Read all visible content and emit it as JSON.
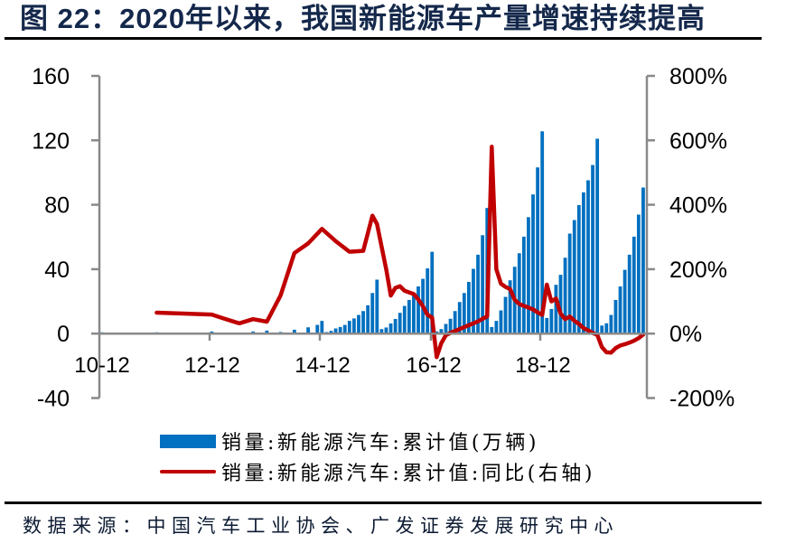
{
  "header": {
    "title": "图 22：2020年以来，我国新能源车产量增速持续提高"
  },
  "legend": {
    "items": [
      {
        "label": "销量:新能源汽车:累计值(万辆)",
        "marker": "bar",
        "color": "#0070c0"
      },
      {
        "label": "销量:新能源汽车:累计值:同比(右轴)",
        "marker": "line",
        "color": "#c00000"
      }
    ]
  },
  "footer": {
    "source": "数据来源：中国汽车工业协会、广发证券发展研究中心"
  },
  "chart_data": {
    "type": "bar+line",
    "title": "图 22：2020年以来，我国新能源车产量增速持续提高",
    "xlabel": "",
    "ylabel_left": "",
    "ylabel_right": "",
    "ylim_left": [
      -40,
      160
    ],
    "yticks_left": [
      "160",
      "120",
      "80",
      "40",
      "0",
      "-40"
    ],
    "ylim_right": [
      -200,
      800
    ],
    "yticks_right": [
      "800%",
      "600%",
      "400%",
      "200%",
      "0%",
      "-200%"
    ],
    "x_tick_labels": [
      "10-12",
      "12-12",
      "14-12",
      "16-12",
      "18-12"
    ],
    "grid": false,
    "legend_position": "bottom",
    "series": [
      {
        "name": "销量:新能源汽车:累计值(万辆)",
        "type": "bar",
        "axis": "left",
        "color": "#0070c0",
        "x": [
          "2010-12",
          "2011-11",
          "2011-12",
          "2012-01",
          "2012-02",
          "2012-03",
          "2012-04",
          "2012-05",
          "2012-06",
          "2012-07",
          "2012-08",
          "2012-09",
          "2012-10",
          "2012-11",
          "2012-12",
          "2013-03",
          "2013-06",
          "2013-09",
          "2013-12",
          "2014-03",
          "2014-06",
          "2014-09",
          "2014-11",
          "2014-12",
          "2015-01",
          "2015-02",
          "2015-03",
          "2015-04",
          "2015-05",
          "2015-06",
          "2015-07",
          "2015-08",
          "2015-09",
          "2015-10",
          "2015-11",
          "2015-12",
          "2016-01",
          "2016-02",
          "2016-03",
          "2016-04",
          "2016-05",
          "2016-06",
          "2016-07",
          "2016-08",
          "2016-09",
          "2016-10",
          "2016-11",
          "2016-12",
          "2017-01",
          "2017-02",
          "2017-03",
          "2017-04",
          "2017-05",
          "2017-06",
          "2017-07",
          "2017-08",
          "2017-09",
          "2017-10",
          "2017-11",
          "2017-12",
          "2018-01",
          "2018-02",
          "2018-03",
          "2018-04",
          "2018-05",
          "2018-06",
          "2018-07",
          "2018-08",
          "2018-09",
          "2018-10",
          "2018-11",
          "2018-12",
          "2019-01",
          "2019-02",
          "2019-03",
          "2019-04",
          "2019-05",
          "2019-06",
          "2019-07",
          "2019-08",
          "2019-09",
          "2019-10",
          "2019-11",
          "2019-12",
          "2020-01",
          "2020-02",
          "2020-03",
          "2020-04",
          "2020-05",
          "2020-06",
          "2020-07",
          "2020-08",
          "2020-09",
          "2020-10"
        ],
        "values": [
          0.8,
          0.7,
          0.8,
          0.3,
          0.3,
          0.35,
          0.35,
          0.4,
          0.4,
          0.45,
          0.5,
          0.55,
          0.6,
          0.7,
          1.3,
          0.4,
          0.6,
          1.3,
          1.9,
          1.0,
          2.4,
          3.9,
          5.4,
          7.9,
          0.95,
          1.7,
          3.2,
          4.1,
          5.4,
          7.9,
          9.4,
          11.6,
          14.0,
          17.6,
          25.2,
          33.5,
          2.8,
          3.8,
          6.3,
          9.1,
          12.9,
          17.2,
          20.9,
          24.7,
          29.3,
          34.0,
          40.5,
          50.8,
          1.3,
          2.8,
          6.0,
          9.2,
          14.0,
          19.6,
          25.2,
          32.1,
          40.2,
          49.0,
          61.1,
          78.0,
          4.1,
          7.9,
          14.4,
          22.8,
          33.1,
          41.5,
          49.9,
          60.2,
          72.3,
          86.4,
          103.2,
          125.6,
          9.7,
          15.3,
          30.3,
          36.5,
          47.1,
          62.1,
          70.5,
          79.8,
          87.7,
          95.2,
          104.7,
          121.0,
          5.0,
          6.4,
          11.6,
          20.9,
          29.3,
          39.6,
          49.0,
          60.2,
          73.9,
          90.7
        ]
      },
      {
        "name": "销量:新能源汽车:累计值:同比(右轴)",
        "type": "line",
        "axis": "right",
        "unit": "%",
        "color": "#c00000",
        "x": [
          "2011-12",
          "2012-12",
          "2013-03",
          "2013-06",
          "2013-09",
          "2013-12",
          "2014-03",
          "2014-06",
          "2014-09",
          "2014-12",
          "2015-03",
          "2015-06",
          "2015-09",
          "2015-11",
          "2015-12",
          "2016-02",
          "2016-03",
          "2016-04",
          "2016-05",
          "2016-06",
          "2016-07",
          "2016-08",
          "2016-09",
          "2016-10",
          "2016-11",
          "2016-12",
          "2017-01",
          "2017-02",
          "2017-03",
          "2017-04",
          "2017-05",
          "2017-06",
          "2017-07",
          "2017-08",
          "2017-09",
          "2017-10",
          "2017-11",
          "2017-12",
          "2018-01",
          "2018-02",
          "2018-03",
          "2018-04",
          "2018-05",
          "2018-06",
          "2018-07",
          "2018-08",
          "2018-09",
          "2018-10",
          "2018-11",
          "2018-12",
          "2019-01",
          "2019-02",
          "2019-03",
          "2019-04",
          "2019-05",
          "2019-06",
          "2019-07",
          "2019-08",
          "2019-09",
          "2019-10",
          "2019-11",
          "2019-12",
          "2020-01",
          "2020-02",
          "2020-03",
          "2020-04",
          "2020-05",
          "2020-06",
          "2020-07",
          "2020-08",
          "2020-09",
          "2020-10"
        ],
        "values": [
          65,
          59,
          45,
          32,
          45,
          37,
          119,
          250,
          280,
          325,
          287,
          254,
          257,
          366,
          340,
          200,
          118,
          142,
          147,
          133,
          128,
          123,
          106,
          85,
          58,
          50,
          -73,
          -30,
          -5,
          2,
          8,
          14,
          20,
          26,
          32,
          38,
          46,
          53,
          580,
          200,
          155,
          145,
          138,
          105,
          92,
          86,
          81,
          75,
          66,
          58,
          152,
          100,
          109,
          62,
          45,
          53,
          40,
          30,
          17,
          10,
          2,
          -4,
          -42,
          -58,
          -59,
          -45,
          -37,
          -33,
          -28,
          -22,
          -14,
          -3
        ]
      }
    ]
  }
}
